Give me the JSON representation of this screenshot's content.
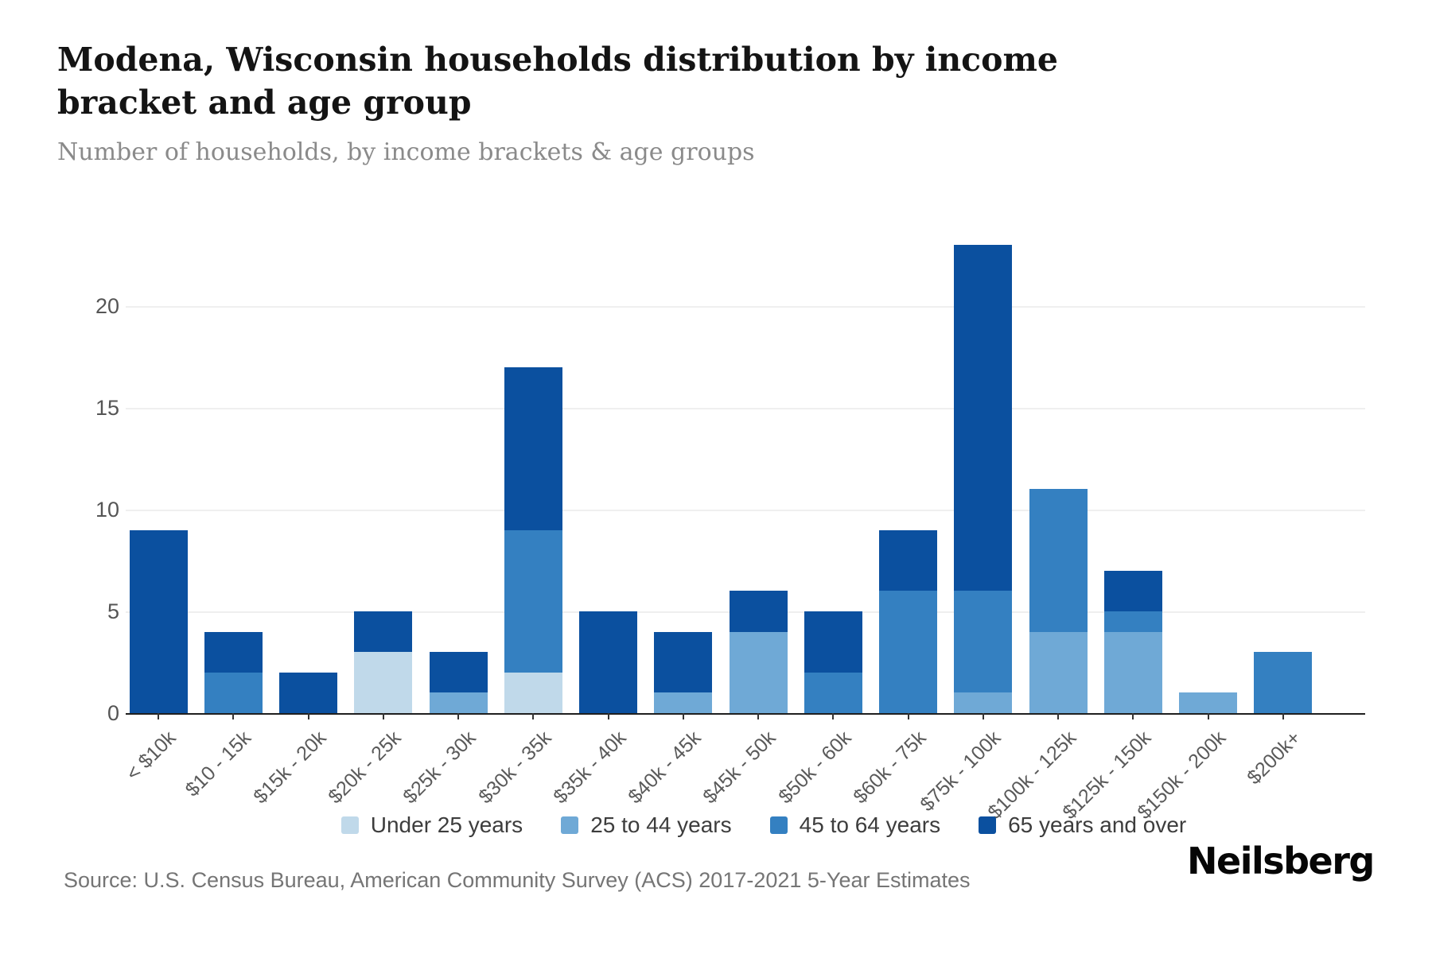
{
  "header": {
    "title": "Modena, Wisconsin households distribution by income bracket and age group",
    "subtitle": "Number of households, by income brackets & age groups"
  },
  "source": {
    "text": "Source: U.S. Census Bureau, American Community Survey (ACS) 2017-2021 5-Year Estimates"
  },
  "brand": {
    "logo_text": "Neilsberg"
  },
  "colors": {
    "under_25": "#c0d9ea",
    "age_25_44": "#6fa9d6",
    "age_45_64": "#3480c1",
    "age_65_over": "#0b509f",
    "gridline": "#efefef",
    "axis": "#1f1f1f"
  },
  "chart_data": {
    "type": "bar",
    "stacked": true,
    "title": "Modena, Wisconsin households distribution by income bracket and age group",
    "subtitle": "Number of households, by income brackets & age groups",
    "xlabel": "",
    "ylabel": "",
    "grid": true,
    "legend_position": "bottom",
    "yticks": [
      0,
      5,
      10,
      15,
      20
    ],
    "ylim": [
      0,
      23.5
    ],
    "categories": [
      "< $10k",
      "$10 - 15k",
      "$15k - 20k",
      "$20k - 25k",
      "$25k - 30k",
      "$30k - 35k",
      "$35k - 40k",
      "$40k - 45k",
      "$45k - 50k",
      "$50k - 60k",
      "$60k - 75k",
      "$75k - 100k",
      "$100k - 125k",
      "$125k - 150k",
      "$150k - 200k",
      "$200k+"
    ],
    "series": [
      {
        "name": "Under 25 years",
        "color": "#c0d9ea",
        "values": [
          0,
          0,
          0,
          3,
          0,
          2,
          0,
          0,
          0,
          0,
          0,
          0,
          0,
          0,
          0,
          0
        ]
      },
      {
        "name": "25 to 44 years",
        "color": "#6fa9d6",
        "values": [
          0,
          0,
          0,
          0,
          1,
          0,
          0,
          1,
          4,
          0,
          0,
          1,
          4,
          4,
          1,
          0
        ]
      },
      {
        "name": "45 to 64 years",
        "color": "#3480c1",
        "values": [
          0,
          2,
          0,
          0,
          0,
          7,
          0,
          0,
          0,
          2,
          6,
          5,
          7,
          1,
          0,
          3
        ]
      },
      {
        "name": "65 years and over",
        "color": "#0b509f",
        "values": [
          9,
          2,
          2,
          2,
          2,
          8,
          5,
          3,
          2,
          3,
          3,
          17,
          0,
          2,
          0,
          0
        ]
      }
    ],
    "totals": [
      9,
      4,
      2,
      5,
      3,
      17,
      5,
      4,
      6,
      5,
      9,
      23,
      11,
      7,
      1,
      3
    ]
  }
}
